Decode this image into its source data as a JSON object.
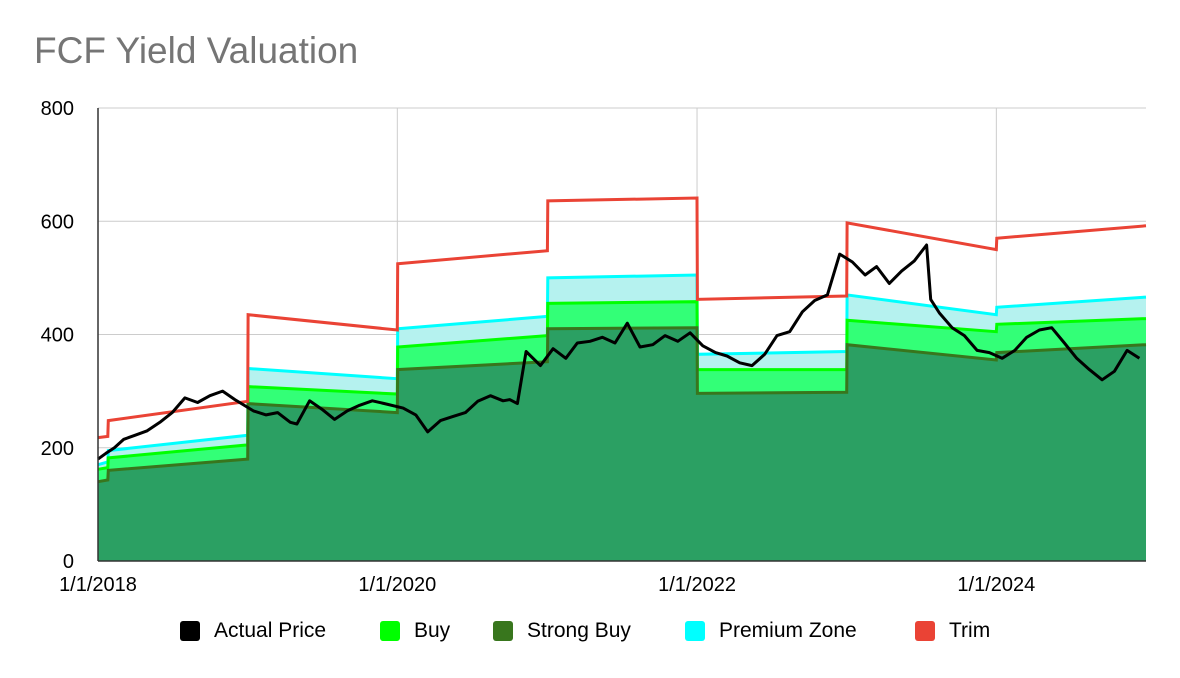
{
  "chart_data": {
    "type": "area",
    "title": "FCF Yield Valuation",
    "xlabel": "",
    "ylabel": "",
    "xlim": [
      "2018-01-01",
      "2024-12-31"
    ],
    "ylim": [
      0,
      800
    ],
    "y_ticks": [
      0,
      200,
      400,
      600,
      800
    ],
    "x_ticks": [
      "2018-01-01",
      "2020-01-01",
      "2022-01-01",
      "2024-01-01"
    ],
    "x_tick_labels": [
      "1/1/2018",
      "1/1/2020",
      "1/1/2022",
      "1/1/2024"
    ],
    "grid": true,
    "legend_position": "bottom",
    "series": [
      {
        "name": "Actual Price",
        "color": "#000000",
        "render": "line",
        "points": [
          [
            "2018-01-01",
            180
          ],
          [
            "2018-01-20",
            190
          ],
          [
            "2018-02-10",
            200
          ],
          [
            "2018-03-05",
            215
          ],
          [
            "2018-04-01",
            222
          ],
          [
            "2018-05-01",
            230
          ],
          [
            "2018-06-01",
            245
          ],
          [
            "2018-07-01",
            262
          ],
          [
            "2018-08-01",
            288
          ],
          [
            "2018-09-01",
            280
          ],
          [
            "2018-10-01",
            292
          ],
          [
            "2018-11-01",
            300
          ],
          [
            "2018-12-01",
            285
          ],
          [
            "2019-01-15",
            265
          ],
          [
            "2019-02-15",
            258
          ],
          [
            "2019-03-15",
            262
          ],
          [
            "2019-04-15",
            245
          ],
          [
            "2019-05-01",
            242
          ],
          [
            "2019-06-01",
            283
          ],
          [
            "2019-07-01",
            268
          ],
          [
            "2019-08-01",
            250
          ],
          [
            "2019-09-01",
            265
          ],
          [
            "2019-10-01",
            275
          ],
          [
            "2019-11-01",
            283
          ],
          [
            "2019-12-01",
            278
          ],
          [
            "2020-01-15",
            270
          ],
          [
            "2020-02-15",
            258
          ],
          [
            "2020-03-15",
            228
          ],
          [
            "2020-04-15",
            248
          ],
          [
            "2020-05-15",
            255
          ],
          [
            "2020-06-15",
            262
          ],
          [
            "2020-07-15",
            282
          ],
          [
            "2020-08-15",
            292
          ],
          [
            "2020-09-15",
            283
          ],
          [
            "2020-10-01",
            285
          ],
          [
            "2020-10-20",
            278
          ],
          [
            "2020-11-10",
            370
          ],
          [
            "2020-12-15",
            345
          ],
          [
            "2021-01-15",
            375
          ],
          [
            "2021-02-15",
            358
          ],
          [
            "2021-03-15",
            385
          ],
          [
            "2021-04-15",
            388
          ],
          [
            "2021-05-15",
            395
          ],
          [
            "2021-06-15",
            385
          ],
          [
            "2021-07-15",
            420
          ],
          [
            "2021-08-15",
            378
          ],
          [
            "2021-09-15",
            382
          ],
          [
            "2021-10-15",
            398
          ],
          [
            "2021-11-15",
            388
          ],
          [
            "2021-12-15",
            403
          ],
          [
            "2022-01-15",
            380
          ],
          [
            "2022-02-15",
            368
          ],
          [
            "2022-03-15",
            362
          ],
          [
            "2022-04-15",
            350
          ],
          [
            "2022-05-15",
            345
          ],
          [
            "2022-06-15",
            365
          ],
          [
            "2022-07-15",
            398
          ],
          [
            "2022-08-15",
            405
          ],
          [
            "2022-09-15",
            440
          ],
          [
            "2022-10-15",
            460
          ],
          [
            "2022-11-15",
            470
          ],
          [
            "2022-12-15",
            542
          ],
          [
            "2023-01-15",
            528
          ],
          [
            "2023-02-15",
            505
          ],
          [
            "2023-03-15",
            520
          ],
          [
            "2023-04-15",
            490
          ],
          [
            "2023-05-15",
            512
          ],
          [
            "2023-06-15",
            530
          ],
          [
            "2023-07-15",
            558
          ],
          [
            "2023-07-25",
            462
          ],
          [
            "2023-08-15",
            438
          ],
          [
            "2023-09-15",
            412
          ],
          [
            "2023-10-15",
            398
          ],
          [
            "2023-11-15",
            372
          ],
          [
            "2023-12-15",
            368
          ],
          [
            "2024-01-15",
            358
          ],
          [
            "2024-02-15",
            372
          ],
          [
            "2024-03-15",
            395
          ],
          [
            "2024-04-15",
            408
          ],
          [
            "2024-05-15",
            412
          ],
          [
            "2024-06-15",
            385
          ],
          [
            "2024-07-15",
            358
          ],
          [
            "2024-08-15",
            338
          ],
          [
            "2024-09-15",
            320
          ],
          [
            "2024-10-15",
            335
          ],
          [
            "2024-11-15",
            372
          ],
          [
            "2024-12-15",
            358
          ]
        ]
      },
      {
        "name": "Buy",
        "color": "#00ff00",
        "render": "band",
        "points": [
          [
            "2018-01-01",
            162
          ],
          [
            "2018-01-25",
            165
          ],
          [
            "2018-01-26",
            182
          ],
          [
            "2019-01-01",
            205
          ],
          [
            "2019-01-02",
            308
          ],
          [
            "2020-01-01",
            295
          ],
          [
            "2020-01-02",
            378
          ],
          [
            "2021-01-01",
            398
          ],
          [
            "2021-01-02",
            455
          ],
          [
            "2022-01-01",
            458
          ],
          [
            "2022-01-02",
            338
          ],
          [
            "2023-01-01",
            338
          ],
          [
            "2023-01-02",
            425
          ],
          [
            "2024-01-01",
            405
          ],
          [
            "2024-01-02",
            418
          ],
          [
            "2024-12-31",
            428
          ]
        ]
      },
      {
        "name": "Strong Buy",
        "color": "#38761d",
        "fill": "#2ba063",
        "render": "area",
        "points": [
          [
            "2018-01-01",
            140
          ],
          [
            "2018-01-25",
            143
          ],
          [
            "2018-01-26",
            160
          ],
          [
            "2019-01-01",
            180
          ],
          [
            "2019-01-02",
            278
          ],
          [
            "2020-01-01",
            262
          ],
          [
            "2020-01-02",
            338
          ],
          [
            "2021-01-01",
            352
          ],
          [
            "2021-01-02",
            410
          ],
          [
            "2022-01-01",
            412
          ],
          [
            "2022-01-02",
            296
          ],
          [
            "2023-01-01",
            298
          ],
          [
            "2023-01-02",
            382
          ],
          [
            "2024-01-01",
            355
          ],
          [
            "2024-01-02",
            368
          ],
          [
            "2024-12-31",
            382
          ]
        ]
      },
      {
        "name": "Premium Zone",
        "color": "#00ffff",
        "fill": "#b5f2ef",
        "render": "band",
        "points": [
          [
            "2018-01-01",
            170
          ],
          [
            "2018-01-25",
            175
          ],
          [
            "2018-01-26",
            195
          ],
          [
            "2019-01-01",
            222
          ],
          [
            "2019-01-02",
            340
          ],
          [
            "2020-01-01",
            322
          ],
          [
            "2020-01-02",
            410
          ],
          [
            "2021-01-01",
            432
          ],
          [
            "2021-01-02",
            500
          ],
          [
            "2022-01-01",
            505
          ],
          [
            "2022-01-02",
            365
          ],
          [
            "2023-01-01",
            370
          ],
          [
            "2023-01-02",
            470
          ],
          [
            "2024-01-01",
            435
          ],
          [
            "2024-01-02",
            448
          ],
          [
            "2024-12-31",
            466
          ]
        ]
      },
      {
        "name": "Trim",
        "color": "#ea4335",
        "render": "line",
        "points": [
          [
            "2018-01-01",
            218
          ],
          [
            "2018-01-25",
            220
          ],
          [
            "2018-01-26",
            248
          ],
          [
            "2019-01-01",
            282
          ],
          [
            "2019-01-02",
            435
          ],
          [
            "2020-01-01",
            408
          ],
          [
            "2020-01-02",
            525
          ],
          [
            "2021-01-01",
            548
          ],
          [
            "2021-01-02",
            636
          ],
          [
            "2022-01-01",
            641
          ],
          [
            "2022-01-02",
            462
          ],
          [
            "2023-01-01",
            468
          ],
          [
            "2023-01-02",
            597
          ],
          [
            "2024-01-01",
            550
          ],
          [
            "2024-01-02",
            570
          ],
          [
            "2024-12-31",
            592
          ]
        ]
      }
    ]
  }
}
